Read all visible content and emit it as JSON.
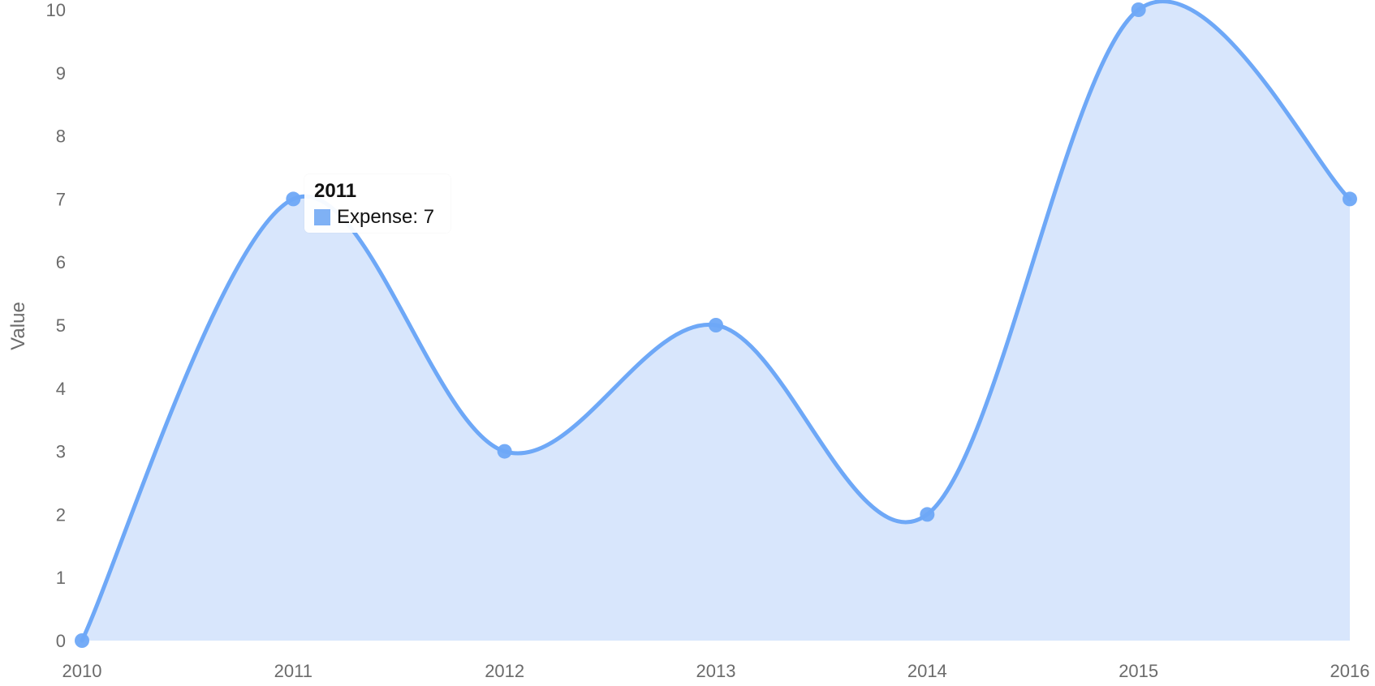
{
  "chart_data": {
    "type": "area",
    "categories": [
      "2010",
      "2011",
      "2012",
      "2013",
      "2014",
      "2015",
      "2016"
    ],
    "series": [
      {
        "name": "Expense",
        "values": [
          0,
          7,
          3,
          5,
          2,
          10,
          7
        ]
      }
    ],
    "ylabel": "Value",
    "ylim": [
      0,
      10
    ],
    "yticks": [
      0,
      1,
      2,
      3,
      4,
      5,
      6,
      7,
      8,
      9,
      10
    ],
    "grid": false,
    "tooltip": {
      "title": "2011",
      "series_name": "Expense",
      "value": "7"
    },
    "colors": {
      "line": "#6ea8f7",
      "area": "#d8e6fc",
      "marker": "#6ea8f7",
      "swatch": "#7fb1f5"
    }
  }
}
